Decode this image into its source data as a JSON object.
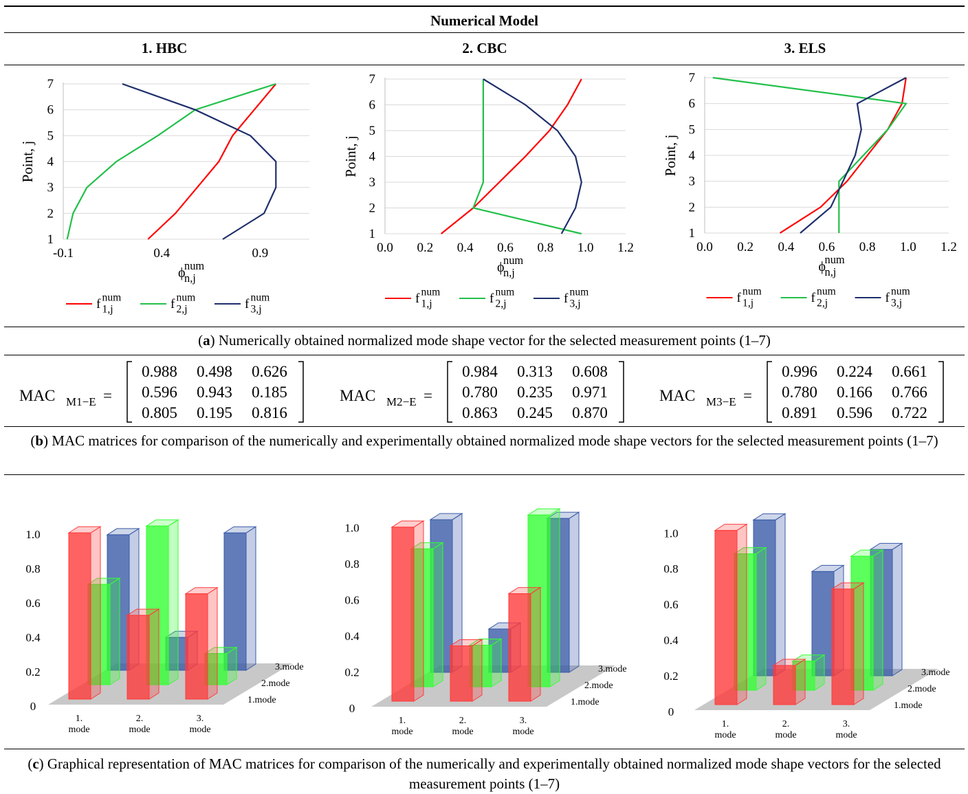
{
  "table": {
    "header": "Numerical Model",
    "columns": [
      "1. HBC",
      "2. CBC",
      "3. ELS"
    ]
  },
  "captions": {
    "a_letter": "a",
    "a_text": " Numerically obtained normalized mode shape vector for the selected measurement points (1–7)",
    "b_letter": "b",
    "b_text": " MAC matrices for comparison of the numerically and experimentally obtained normalized mode shape vectors for the selected measurement points (1–7)",
    "c_letter": "c",
    "c_text": " Graphical representation of MAC matrices for comparison of the numerically and experimentally obtained normalized mode shape vectors for the selected measurement points (1–7)"
  },
  "mac_matrices": [
    {
      "label_main": "MAC",
      "label_sub": "M1−E",
      "rows": [
        [
          "0.988",
          "0.498",
          "0.626"
        ],
        [
          "0.596",
          "0.943",
          "0.185"
        ],
        [
          "0.805",
          "0.195",
          "0.816"
        ]
      ]
    },
    {
      "label_main": "MAC",
      "label_sub": "M2−E",
      "rows": [
        [
          "0.984",
          "0.313",
          "0.608"
        ],
        [
          "0.780",
          "0.235",
          "0.971"
        ],
        [
          "0.863",
          "0.245",
          "0.870"
        ]
      ]
    },
    {
      "label_main": "MAC",
      "label_sub": "M3−E",
      "rows": [
        [
          "0.996",
          "0.224",
          "0.661"
        ],
        [
          "0.780",
          "0.166",
          "0.766"
        ],
        [
          "0.891",
          "0.596",
          "0.722"
        ]
      ]
    }
  ],
  "colors": {
    "mode1": "#ff0000",
    "mode2": "#22c04a",
    "mode3": "#1f2f6b",
    "bar_red": "#ff3b3b",
    "bar_green": "#33ff33",
    "bar_blue": "#3a5ba8",
    "floor": "#c8c8c8"
  },
  "chart_data": [
    {
      "type": "line",
      "title": "",
      "xlabel": "ϕ",
      "xlabel_sup": "num",
      "xlabel_sub": "n,j",
      "ylabel": "Point, j",
      "xlim": [
        -0.1,
        1.15
      ],
      "xticks": [
        "-0.1",
        "0.4",
        "0.9"
      ],
      "yticks": [
        "1",
        "2",
        "3",
        "4",
        "5",
        "6",
        "7"
      ],
      "legend": [
        {
          "base": "f",
          "sup": "num",
          "sub": "1,j"
        },
        {
          "base": "f",
          "sup": "num",
          "sub": "2,j"
        },
        {
          "base": "f",
          "sup": "num",
          "sub": "3,j"
        }
      ],
      "series": [
        {
          "points": [
            [
              0.33,
              1
            ],
            [
              0.47,
              2
            ],
            [
              0.58,
              3
            ],
            [
              0.69,
              4
            ],
            [
              0.76,
              5
            ],
            [
              0.87,
              6
            ],
            [
              0.98,
              7
            ]
          ]
        },
        {
          "points": [
            [
              -0.08,
              1
            ],
            [
              -0.05,
              2
            ],
            [
              0.02,
              3
            ],
            [
              0.17,
              4
            ],
            [
              0.38,
              5
            ],
            [
              0.57,
              6
            ],
            [
              0.98,
              7
            ]
          ]
        },
        {
          "points": [
            [
              0.71,
              1
            ],
            [
              0.92,
              2
            ],
            [
              0.98,
              3
            ],
            [
              0.98,
              4
            ],
            [
              0.85,
              5
            ],
            [
              0.57,
              6
            ],
            [
              0.2,
              7
            ]
          ]
        }
      ]
    },
    {
      "type": "line",
      "title": "",
      "xlabel": "ϕ",
      "xlabel_sup": "num",
      "xlabel_sub": "n,j",
      "ylabel": "Point, j",
      "xlim": [
        0.0,
        1.2
      ],
      "xticks": [
        "0.0",
        "0.2",
        "0.4",
        "0.6",
        "0.8",
        "1.0",
        "1.2"
      ],
      "yticks": [
        "1",
        "2",
        "3",
        "4",
        "5",
        "6",
        "7"
      ],
      "legend": [
        {
          "base": "f",
          "sup": "num",
          "sub": "1,j"
        },
        {
          "base": "f",
          "sup": "num",
          "sub": "2,j"
        },
        {
          "base": "f",
          "sup": "num",
          "sub": "3,j"
        }
      ],
      "series": [
        {
          "points": [
            [
              0.28,
              1
            ],
            [
              0.44,
              2
            ],
            [
              0.57,
              3
            ],
            [
              0.7,
              4
            ],
            [
              0.82,
              5
            ],
            [
              0.91,
              6
            ],
            [
              0.98,
              7
            ]
          ]
        },
        {
          "points": [
            [
              0.98,
              1
            ],
            [
              0.44,
              2
            ],
            [
              0.49,
              3
            ],
            [
              0.49,
              4
            ],
            [
              0.49,
              5
            ],
            [
              0.49,
              6
            ],
            [
              0.49,
              7
            ]
          ]
        },
        {
          "points": [
            [
              0.88,
              1
            ],
            [
              0.95,
              2
            ],
            [
              0.98,
              3
            ],
            [
              0.95,
              4
            ],
            [
              0.86,
              5
            ],
            [
              0.7,
              6
            ],
            [
              0.49,
              7
            ]
          ]
        }
      ]
    },
    {
      "type": "line",
      "title": "",
      "xlabel": "ϕ",
      "xlabel_sup": "num",
      "xlabel_sub": "n,j",
      "ylabel": "Point, j",
      "xlim": [
        0.0,
        1.2
      ],
      "xticks": [
        "0.0",
        "0.2",
        "0.4",
        "0.6",
        "0.8",
        "1.0",
        "1.2"
      ],
      "yticks": [
        "1",
        "2",
        "3",
        "4",
        "5",
        "6",
        "7"
      ],
      "legend": [
        {
          "base": "f",
          "sup": "num",
          "sub": "1,j"
        },
        {
          "base": "f",
          "sup": "num",
          "sub": "2,j"
        },
        {
          "base": "f",
          "sup": "num",
          "sub": "3,j"
        }
      ],
      "series": [
        {
          "points": [
            [
              0.37,
              1
            ],
            [
              0.57,
              2
            ],
            [
              0.7,
              3
            ],
            [
              0.8,
              4
            ],
            [
              0.9,
              5
            ],
            [
              0.97,
              6
            ],
            [
              0.99,
              7
            ]
          ]
        },
        {
          "points": [
            [
              0.66,
              1
            ],
            [
              0.66,
              2
            ],
            [
              0.66,
              3
            ],
            [
              0.78,
              4
            ],
            [
              0.9,
              5
            ],
            [
              0.99,
              6
            ],
            [
              0.04,
              7
            ]
          ]
        },
        {
          "points": [
            [
              0.47,
              1
            ],
            [
              0.62,
              2
            ],
            [
              0.68,
              3
            ],
            [
              0.74,
              4
            ],
            [
              0.77,
              5
            ],
            [
              0.75,
              6
            ],
            [
              0.99,
              7
            ]
          ]
        }
      ]
    },
    {
      "type": "bar3d",
      "title": "",
      "ylim": [
        0,
        1.0
      ],
      "yticks": [
        "0",
        "0.2",
        "0.4",
        "0.6",
        "0.8",
        "1.0"
      ],
      "x_labels": [
        [
          "1.",
          "mode"
        ],
        [
          "2.",
          "mode"
        ],
        [
          "3.",
          "mode"
        ]
      ],
      "depth_labels": [
        "1.mode",
        "2.mode",
        "3.mode"
      ],
      "values": [
        [
          0.988,
          0.498,
          0.626
        ],
        [
          0.596,
          0.943,
          0.185
        ],
        [
          0.805,
          0.195,
          0.816
        ]
      ]
    },
    {
      "type": "bar3d",
      "title": "",
      "ylim": [
        0,
        1.0
      ],
      "yticks": [
        "0",
        "0.2",
        "0.4",
        "0.6",
        "0.8",
        "1.0"
      ],
      "x_labels": [
        [
          "1.",
          "mode"
        ],
        [
          "2.",
          "mode"
        ],
        [
          "3.",
          "mode"
        ]
      ],
      "depth_labels": [
        "1.mode",
        "2.mode",
        "3.mode"
      ],
      "values": [
        [
          0.984,
          0.313,
          0.608
        ],
        [
          0.78,
          0.235,
          0.971
        ],
        [
          0.863,
          0.245,
          0.87
        ]
      ]
    },
    {
      "type": "bar3d",
      "title": "",
      "ylim": [
        0,
        1.0
      ],
      "yticks": [
        "0",
        "0.2",
        "0.4",
        "0.6",
        "0.8",
        "1.0"
      ],
      "x_labels": [
        [
          "1.",
          "mode"
        ],
        [
          "2.",
          "mode"
        ],
        [
          "3.",
          "mode"
        ]
      ],
      "depth_labels": [
        "1.mode",
        "2.mode",
        "3.mode"
      ],
      "values": [
        [
          0.996,
          0.224,
          0.661
        ],
        [
          0.78,
          0.166,
          0.766
        ],
        [
          0.891,
          0.596,
          0.722
        ]
      ]
    }
  ]
}
